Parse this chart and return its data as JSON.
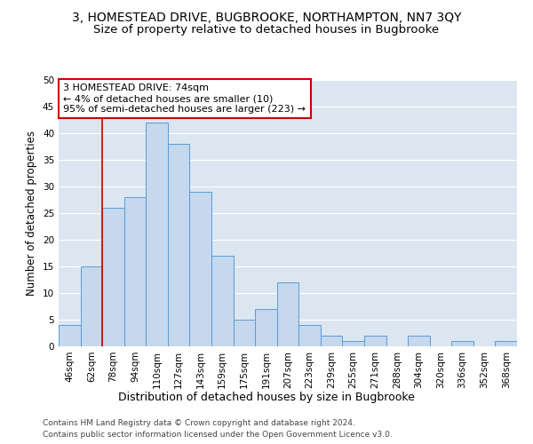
{
  "title": "3, HOMESTEAD DRIVE, BUGBROOKE, NORTHAMPTON, NN7 3QY",
  "subtitle": "Size of property relative to detached houses in Bugbrooke",
  "xlabel": "Distribution of detached houses by size in Bugbrooke",
  "ylabel": "Number of detached properties",
  "categories": [
    "46sqm",
    "62sqm",
    "78sqm",
    "94sqm",
    "110sqm",
    "127sqm",
    "143sqm",
    "159sqm",
    "175sqm",
    "191sqm",
    "207sqm",
    "223sqm",
    "239sqm",
    "255sqm",
    "271sqm",
    "288sqm",
    "304sqm",
    "320sqm",
    "336sqm",
    "352sqm",
    "368sqm"
  ],
  "values": [
    4,
    15,
    26,
    28,
    42,
    38,
    29,
    17,
    5,
    7,
    12,
    4,
    2,
    1,
    2,
    0,
    2,
    0,
    1,
    0,
    1
  ],
  "bar_color": "#c5d8ed",
  "bar_edge_color": "#5b9bd5",
  "bar_edge_width": 0.7,
  "vline_color": "#cc0000",
  "vline_x_index": 1.5,
  "annotation_text": "3 HOMESTEAD DRIVE: 74sqm\n← 4% of detached houses are smaller (10)\n95% of semi-detached houses are larger (223) →",
  "annotation_box_color": "#ffffff",
  "annotation_box_edge": "#cc0000",
  "ylim": [
    0,
    50
  ],
  "yticks": [
    0,
    5,
    10,
    15,
    20,
    25,
    30,
    35,
    40,
    45,
    50
  ],
  "plot_bg_color": "#dce6f1",
  "grid_color": "#ffffff",
  "footer_line1": "Contains HM Land Registry data © Crown copyright and database right 2024.",
  "footer_line2": "Contains public sector information licensed under the Open Government Licence v3.0.",
  "title_fontsize": 10,
  "subtitle_fontsize": 9.5,
  "xlabel_fontsize": 9,
  "ylabel_fontsize": 8.5,
  "tick_fontsize": 7.5,
  "annotation_fontsize": 8,
  "footer_fontsize": 6.5
}
